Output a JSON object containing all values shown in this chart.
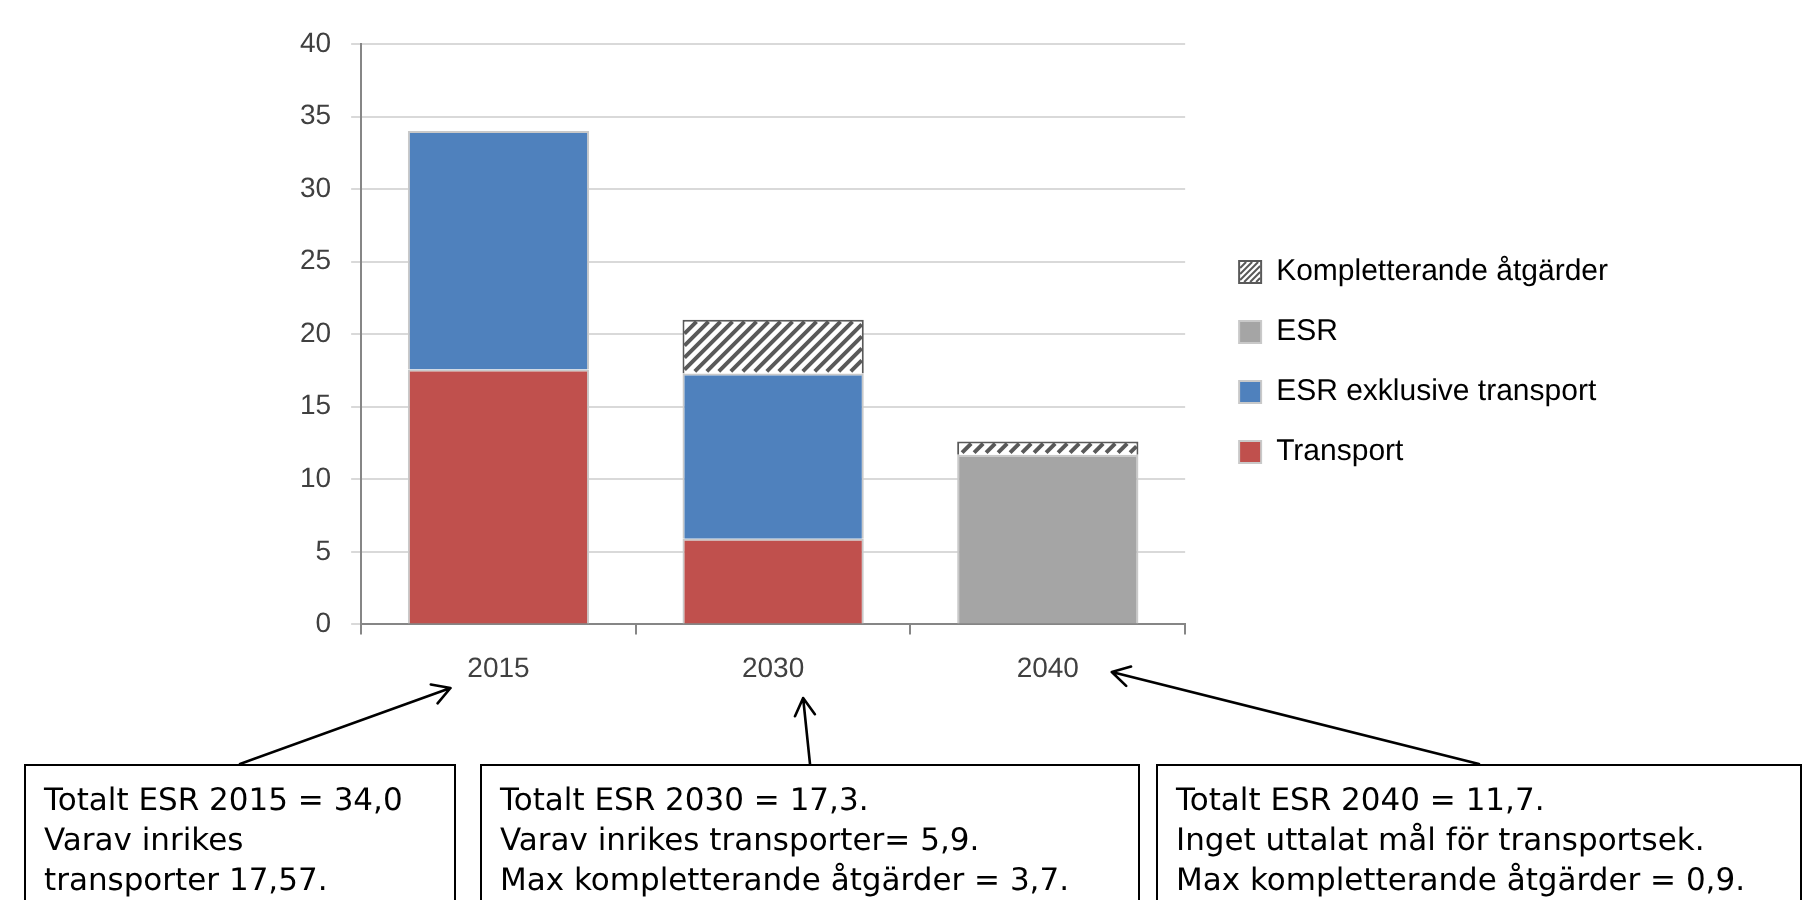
{
  "chart_data": {
    "type": "bar",
    "categories": [
      "2015",
      "2030",
      "2040"
    ],
    "series": [
      {
        "name": "Transport",
        "color": "#c0504d",
        "values": [
          17.57,
          5.9,
          null
        ]
      },
      {
        "name": "ESR exklusive transport",
        "color": "#4f81bd",
        "values": [
          16.43,
          11.4,
          null
        ]
      },
      {
        "name": "ESR",
        "color": "#a5a5a5",
        "values": [
          null,
          null,
          11.7
        ]
      },
      {
        "name": "Kompletterande åtgärder",
        "color": "#595959",
        "values": [
          null,
          3.7,
          0.9
        ]
      }
    ],
    "stacked": true,
    "ylim": [
      0,
      40
    ],
    "yticks": [
      0,
      5,
      10,
      15,
      20,
      25,
      30,
      35,
      40
    ],
    "grid": "y",
    "legend": "right",
    "annotations": [
      "Totalt ESR 2015 = 34,0\nVarav inrikes\ntransporter 17,57.",
      "Totalt ESR 2030 = 17,3.\nVarav inrikes transporter= 5,9.\nMax kompletterande åtgärder = 3,7.",
      "Totalt ESR 2040 = 11,7.\nInget uttalat mål för transportsek.\nMax kompletterande åtgärder = 0,9."
    ]
  }
}
